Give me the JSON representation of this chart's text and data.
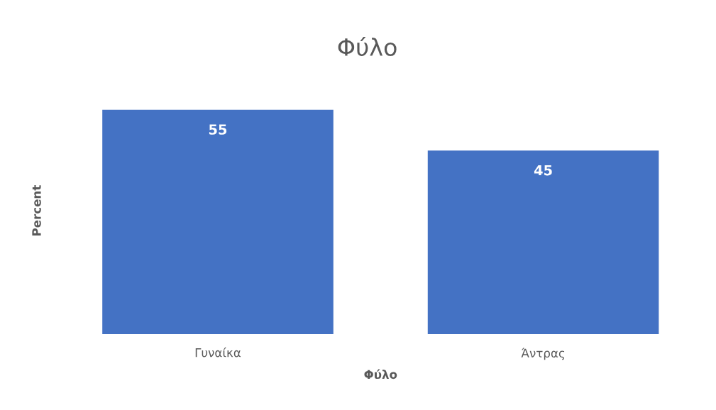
{
  "chart_data": {
    "type": "bar",
    "title": "Φύλο",
    "xlabel": "Φύλο",
    "ylabel": "Percent",
    "categories": [
      "Γυναίκα",
      "Άντρας"
    ],
    "values": [
      55,
      45
    ],
    "color": "#4472c4",
    "data_labels": true,
    "grid": false,
    "legend": false
  }
}
